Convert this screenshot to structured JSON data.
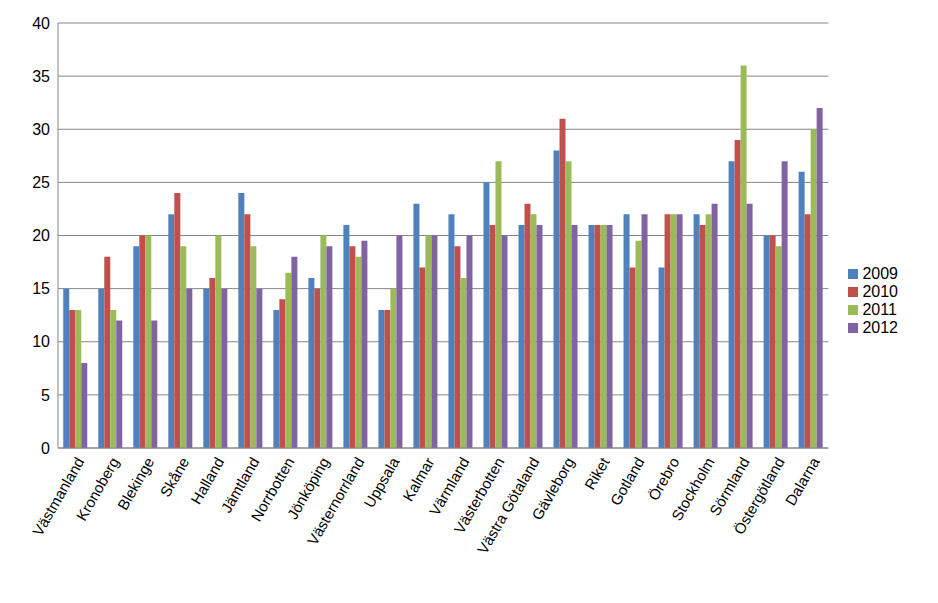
{
  "chart_data": {
    "type": "bar",
    "categories": [
      "Västmanland",
      "Kronoberg",
      "Blekinge",
      "Skåne",
      "Halland",
      "Jämtland",
      "Norrbotten",
      "Jönköping",
      "Västernorrland",
      "Uppsala",
      "Kalmar",
      "Värmland",
      "Västerbotten",
      "Västra Götaland",
      "Gävleborg",
      "Riket",
      "Gotland",
      "Örebro",
      "Stockholm",
      "Sörmland",
      "Östergötland",
      "Dalarna"
    ],
    "series": [
      {
        "name": "2009",
        "color": "#4f81bd",
        "values": [
          15,
          15,
          19,
          22,
          15,
          24,
          13,
          16,
          21,
          13,
          23,
          22,
          25,
          21,
          28,
          21,
          22,
          17,
          22,
          27,
          20,
          26
        ]
      },
      {
        "name": "2010",
        "color": "#c0504d",
        "values": [
          13,
          18,
          20,
          24,
          16,
          22,
          14,
          15,
          19,
          13,
          17,
          19,
          21,
          23,
          31,
          21,
          17,
          22,
          21,
          29,
          20,
          22
        ]
      },
      {
        "name": "2011",
        "color": "#9bbb59",
        "values": [
          13,
          13,
          20,
          19,
          20,
          19,
          16.5,
          20,
          18,
          15,
          20,
          16,
          27,
          22,
          27,
          21,
          19.5,
          22,
          22,
          36,
          19,
          30
        ]
      },
      {
        "name": "2012",
        "color": "#8064a2",
        "values": [
          8,
          12,
          12,
          15,
          15,
          15,
          18,
          19,
          19.5,
          20,
          20,
          20,
          20,
          21,
          21,
          21,
          22,
          22,
          23,
          23,
          27,
          32
        ]
      }
    ],
    "ylim": [
      0,
      40
    ],
    "yticks": [
      0,
      5,
      10,
      15,
      20,
      25,
      30,
      35,
      40
    ],
    "grid": true,
    "legend": "right"
  }
}
